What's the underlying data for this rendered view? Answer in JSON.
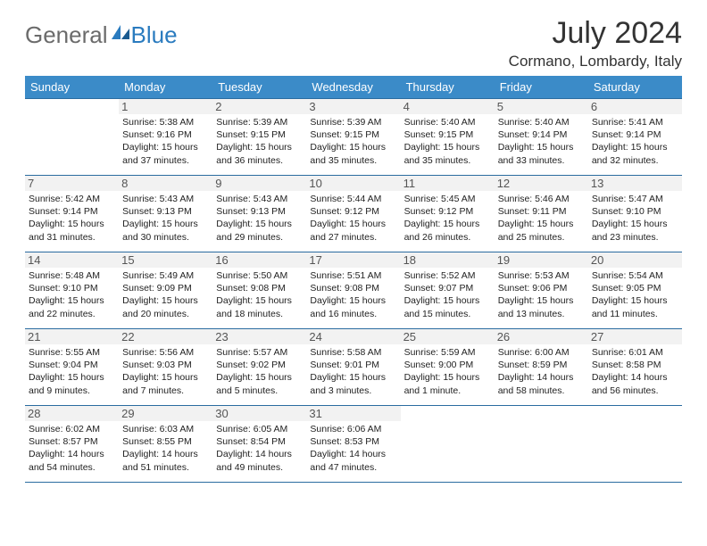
{
  "logo": {
    "part1": "General",
    "part2": "Blue"
  },
  "title": "July 2024",
  "location": "Cormano, Lombardy, Italy",
  "weekdays": [
    "Sunday",
    "Monday",
    "Tuesday",
    "Wednesday",
    "Thursday",
    "Friday",
    "Saturday"
  ],
  "colors": {
    "header_bg": "#3b8bc8",
    "header_text": "#ffffff",
    "rule": "#2a6ca0",
    "logo_gray": "#6b6b6b",
    "logo_blue": "#2a7bbf",
    "daynum_bg": "#f2f2f2",
    "text": "#222222"
  },
  "weeks": [
    [
      {
        "n": "",
        "sr": "",
        "ss": "",
        "dl": ""
      },
      {
        "n": "1",
        "sr": "Sunrise: 5:38 AM",
        "ss": "Sunset: 9:16 PM",
        "dl": "Daylight: 15 hours and 37 minutes."
      },
      {
        "n": "2",
        "sr": "Sunrise: 5:39 AM",
        "ss": "Sunset: 9:15 PM",
        "dl": "Daylight: 15 hours and 36 minutes."
      },
      {
        "n": "3",
        "sr": "Sunrise: 5:39 AM",
        "ss": "Sunset: 9:15 PM",
        "dl": "Daylight: 15 hours and 35 minutes."
      },
      {
        "n": "4",
        "sr": "Sunrise: 5:40 AM",
        "ss": "Sunset: 9:15 PM",
        "dl": "Daylight: 15 hours and 35 minutes."
      },
      {
        "n": "5",
        "sr": "Sunrise: 5:40 AM",
        "ss": "Sunset: 9:14 PM",
        "dl": "Daylight: 15 hours and 33 minutes."
      },
      {
        "n": "6",
        "sr": "Sunrise: 5:41 AM",
        "ss": "Sunset: 9:14 PM",
        "dl": "Daylight: 15 hours and 32 minutes."
      }
    ],
    [
      {
        "n": "7",
        "sr": "Sunrise: 5:42 AM",
        "ss": "Sunset: 9:14 PM",
        "dl": "Daylight: 15 hours and 31 minutes."
      },
      {
        "n": "8",
        "sr": "Sunrise: 5:43 AM",
        "ss": "Sunset: 9:13 PM",
        "dl": "Daylight: 15 hours and 30 minutes."
      },
      {
        "n": "9",
        "sr": "Sunrise: 5:43 AM",
        "ss": "Sunset: 9:13 PM",
        "dl": "Daylight: 15 hours and 29 minutes."
      },
      {
        "n": "10",
        "sr": "Sunrise: 5:44 AM",
        "ss": "Sunset: 9:12 PM",
        "dl": "Daylight: 15 hours and 27 minutes."
      },
      {
        "n": "11",
        "sr": "Sunrise: 5:45 AM",
        "ss": "Sunset: 9:12 PM",
        "dl": "Daylight: 15 hours and 26 minutes."
      },
      {
        "n": "12",
        "sr": "Sunrise: 5:46 AM",
        "ss": "Sunset: 9:11 PM",
        "dl": "Daylight: 15 hours and 25 minutes."
      },
      {
        "n": "13",
        "sr": "Sunrise: 5:47 AM",
        "ss": "Sunset: 9:10 PM",
        "dl": "Daylight: 15 hours and 23 minutes."
      }
    ],
    [
      {
        "n": "14",
        "sr": "Sunrise: 5:48 AM",
        "ss": "Sunset: 9:10 PM",
        "dl": "Daylight: 15 hours and 22 minutes."
      },
      {
        "n": "15",
        "sr": "Sunrise: 5:49 AM",
        "ss": "Sunset: 9:09 PM",
        "dl": "Daylight: 15 hours and 20 minutes."
      },
      {
        "n": "16",
        "sr": "Sunrise: 5:50 AM",
        "ss": "Sunset: 9:08 PM",
        "dl": "Daylight: 15 hours and 18 minutes."
      },
      {
        "n": "17",
        "sr": "Sunrise: 5:51 AM",
        "ss": "Sunset: 9:08 PM",
        "dl": "Daylight: 15 hours and 16 minutes."
      },
      {
        "n": "18",
        "sr": "Sunrise: 5:52 AM",
        "ss": "Sunset: 9:07 PM",
        "dl": "Daylight: 15 hours and 15 minutes."
      },
      {
        "n": "19",
        "sr": "Sunrise: 5:53 AM",
        "ss": "Sunset: 9:06 PM",
        "dl": "Daylight: 15 hours and 13 minutes."
      },
      {
        "n": "20",
        "sr": "Sunrise: 5:54 AM",
        "ss": "Sunset: 9:05 PM",
        "dl": "Daylight: 15 hours and 11 minutes."
      }
    ],
    [
      {
        "n": "21",
        "sr": "Sunrise: 5:55 AM",
        "ss": "Sunset: 9:04 PM",
        "dl": "Daylight: 15 hours and 9 minutes."
      },
      {
        "n": "22",
        "sr": "Sunrise: 5:56 AM",
        "ss": "Sunset: 9:03 PM",
        "dl": "Daylight: 15 hours and 7 minutes."
      },
      {
        "n": "23",
        "sr": "Sunrise: 5:57 AM",
        "ss": "Sunset: 9:02 PM",
        "dl": "Daylight: 15 hours and 5 minutes."
      },
      {
        "n": "24",
        "sr": "Sunrise: 5:58 AM",
        "ss": "Sunset: 9:01 PM",
        "dl": "Daylight: 15 hours and 3 minutes."
      },
      {
        "n": "25",
        "sr": "Sunrise: 5:59 AM",
        "ss": "Sunset: 9:00 PM",
        "dl": "Daylight: 15 hours and 1 minute."
      },
      {
        "n": "26",
        "sr": "Sunrise: 6:00 AM",
        "ss": "Sunset: 8:59 PM",
        "dl": "Daylight: 14 hours and 58 minutes."
      },
      {
        "n": "27",
        "sr": "Sunrise: 6:01 AM",
        "ss": "Sunset: 8:58 PM",
        "dl": "Daylight: 14 hours and 56 minutes."
      }
    ],
    [
      {
        "n": "28",
        "sr": "Sunrise: 6:02 AM",
        "ss": "Sunset: 8:57 PM",
        "dl": "Daylight: 14 hours and 54 minutes."
      },
      {
        "n": "29",
        "sr": "Sunrise: 6:03 AM",
        "ss": "Sunset: 8:55 PM",
        "dl": "Daylight: 14 hours and 51 minutes."
      },
      {
        "n": "30",
        "sr": "Sunrise: 6:05 AM",
        "ss": "Sunset: 8:54 PM",
        "dl": "Daylight: 14 hours and 49 minutes."
      },
      {
        "n": "31",
        "sr": "Sunrise: 6:06 AM",
        "ss": "Sunset: 8:53 PM",
        "dl": "Daylight: 14 hours and 47 minutes."
      },
      {
        "n": "",
        "sr": "",
        "ss": "",
        "dl": ""
      },
      {
        "n": "",
        "sr": "",
        "ss": "",
        "dl": ""
      },
      {
        "n": "",
        "sr": "",
        "ss": "",
        "dl": ""
      }
    ]
  ]
}
